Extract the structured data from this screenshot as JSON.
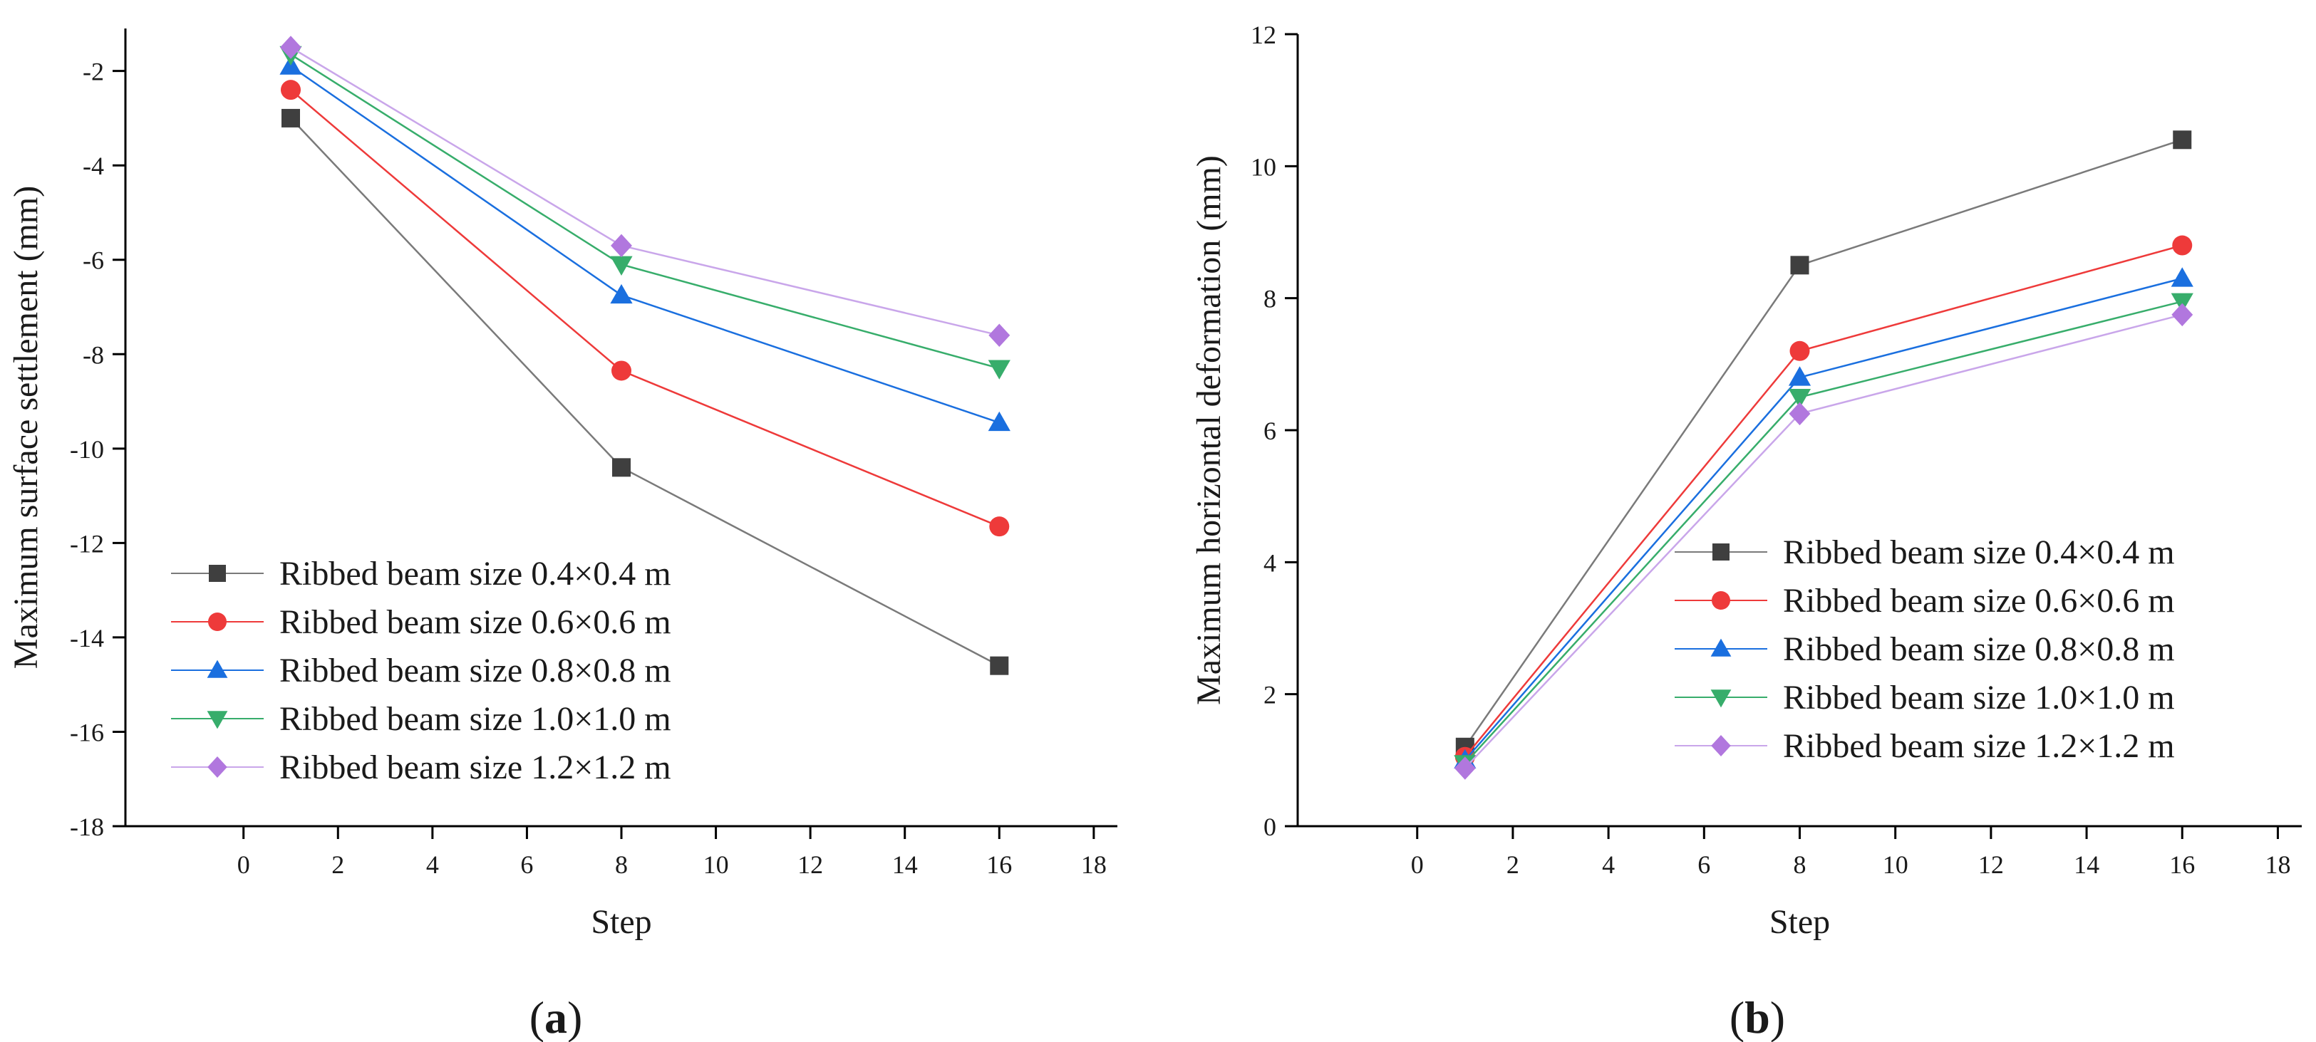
{
  "chart_data": [
    {
      "type": "line",
      "panel": "a",
      "xlabel": "Step",
      "ylabel": "Maximum surface settlement (mm)",
      "xlim": [
        -2.5,
        18.5
      ],
      "ylim": [
        -18,
        -1.1
      ],
      "xticks": [
        0,
        2,
        4,
        6,
        8,
        10,
        12,
        14,
        16,
        18
      ],
      "yticks": [
        -2,
        -4,
        -6,
        -8,
        -10,
        -12,
        -14,
        -16,
        -18
      ],
      "legend_position": "bottom-left",
      "x": [
        1,
        8,
        16
      ],
      "series": [
        {
          "name": "Ribbed beam size 0.4×0.4 m",
          "marker": "square",
          "color": "#3f3f3f",
          "line_color": "#7a7a7a",
          "values": [
            -3.0,
            -10.4,
            -14.6
          ]
        },
        {
          "name": "Ribbed beam size 0.6×0.6 m",
          "marker": "circle",
          "color": "#ee3a3a",
          "line_color": "#ee3a3a",
          "values": [
            -2.4,
            -8.35,
            -11.65
          ]
        },
        {
          "name": "Ribbed beam size 0.8×0.8 m",
          "marker": "triangle-up",
          "color": "#1a6fdf",
          "line_color": "#1a6fdf",
          "values": [
            -1.9,
            -6.75,
            -9.45
          ]
        },
        {
          "name": "Ribbed beam size 1.0×1.0 m",
          "marker": "triangle-down",
          "color": "#37ad6b",
          "line_color": "#37ad6b",
          "values": [
            -1.65,
            -6.1,
            -8.3
          ]
        },
        {
          "name": "Ribbed beam size 1.2×1.2 m",
          "marker": "diamond",
          "color": "#b177de",
          "line_color": "#c9a6ea",
          "values": [
            -1.5,
            -5.7,
            -7.6
          ]
        }
      ]
    },
    {
      "type": "line",
      "panel": "b",
      "xlabel": "Step",
      "ylabel": "Maximum horizontal deformation (mm)",
      "xlim": [
        -2.5,
        18.5
      ],
      "ylim": [
        0,
        12
      ],
      "xticks": [
        0,
        2,
        4,
        6,
        8,
        10,
        12,
        14,
        16,
        18
      ],
      "yticks": [
        0,
        2,
        4,
        6,
        8,
        10,
        12
      ],
      "legend_position": "center-right",
      "x": [
        1,
        8,
        16
      ],
      "series": [
        {
          "name": "Ribbed beam size 0.4×0.4 m",
          "marker": "square",
          "color": "#3f3f3f",
          "line_color": "#7a7a7a",
          "values": [
            1.2,
            8.5,
            10.4
          ]
        },
        {
          "name": "Ribbed beam size 0.6×0.6 m",
          "marker": "circle",
          "color": "#ee3a3a",
          "line_color": "#ee3a3a",
          "values": [
            1.05,
            7.2,
            8.8
          ]
        },
        {
          "name": "Ribbed beam size 0.8×0.8 m",
          "marker": "triangle-up",
          "color": "#1a6fdf",
          "line_color": "#1a6fdf",
          "values": [
            1.0,
            6.8,
            8.3
          ]
        },
        {
          "name": "Ribbed beam size 1.0×1.0 m",
          "marker": "triangle-down",
          "color": "#37ad6b",
          "line_color": "#37ad6b",
          "values": [
            0.95,
            6.5,
            7.95
          ]
        },
        {
          "name": "Ribbed beam size 1.2×1.2 m",
          "marker": "diamond",
          "color": "#b177de",
          "line_color": "#c9a6ea",
          "values": [
            0.88,
            6.25,
            7.75
          ]
        }
      ]
    }
  ],
  "panel_labels": [
    {
      "open": "(",
      "letter": "a",
      "close": ")"
    },
    {
      "open": "(",
      "letter": "b",
      "close": ")"
    }
  ]
}
